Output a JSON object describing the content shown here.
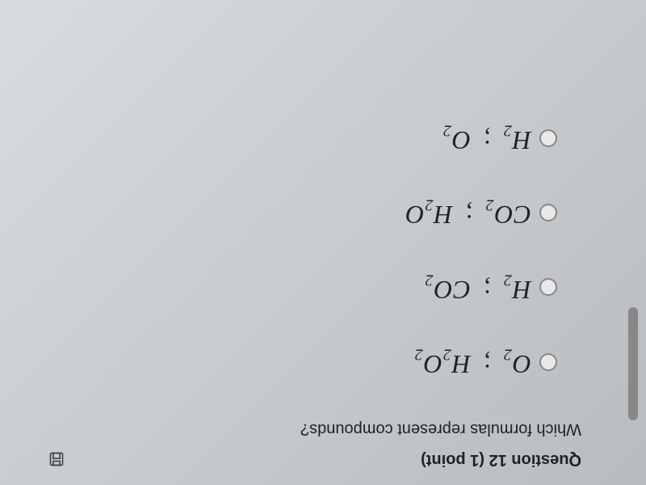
{
  "question": {
    "header": "Question 12 (1 point)",
    "text": "Which formulas represent compounds?"
  },
  "options": [
    {
      "parts": [
        {
          "base": "O",
          "sub": "2"
        },
        {
          "sep": " ; "
        },
        {
          "base": "H",
          "sub": "2"
        },
        {
          "base": "O",
          "sub": "2"
        }
      ]
    },
    {
      "parts": [
        {
          "base": "H",
          "sub": "2"
        },
        {
          "sep": " ; "
        },
        {
          "base": "CO",
          "sub": "2"
        }
      ]
    },
    {
      "parts": [
        {
          "base": "CO",
          "sub": "2"
        },
        {
          "sep": " ; "
        },
        {
          "base": "H",
          "sub": "2"
        },
        {
          "base": "O",
          "sub": ""
        }
      ]
    },
    {
      "parts": [
        {
          "base": "H",
          "sub": "2"
        },
        {
          "sep": " ; "
        },
        {
          "base": "O",
          "sub": "2"
        }
      ]
    }
  ],
  "styling": {
    "background_gradient": [
      "#d8dce0",
      "#c8ccd0",
      "#b8bcc0"
    ],
    "text_color": "#222",
    "radio_border": "#888",
    "radio_bg": "#e8e8e8",
    "header_fontsize": 20,
    "question_fontsize": 20,
    "formula_fontsize": 32,
    "sub_fontsize": 20,
    "font_family_ui": "Arial",
    "font_family_formula": "Times New Roman",
    "rotation_deg": 180
  }
}
